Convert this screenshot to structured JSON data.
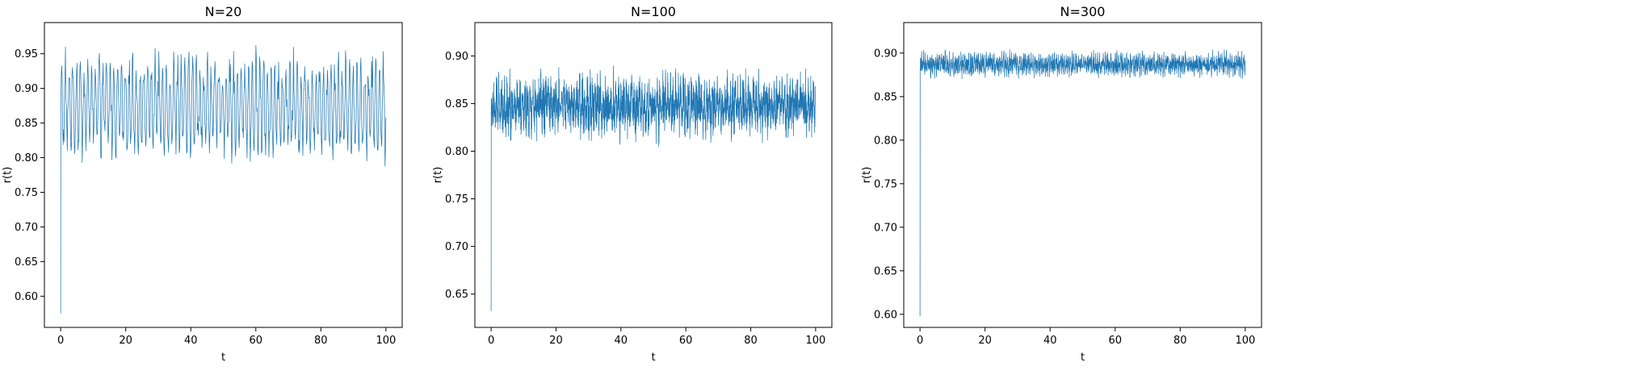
{
  "figure": {
    "line_color": "#1f77b4"
  },
  "chart_data": [
    {
      "type": "line",
      "title": "N=20",
      "xlabel": "t",
      "ylabel": "r(t)",
      "xlim": [
        -5,
        105
      ],
      "ylim": [
        0.555,
        0.995
      ],
      "xticks": [
        0,
        20,
        40,
        60,
        80,
        100
      ],
      "yticks": [
        0.6,
        0.65,
        0.7,
        0.75,
        0.8,
        0.85,
        0.9,
        0.95
      ],
      "series": [
        {
          "signal": {
            "start_value": 0.575,
            "initial_value": 0.86,
            "mean": 0.875,
            "amplitude": 0.055,
            "noise": 0.04,
            "min": 0.772,
            "max": 0.978,
            "period": 1.15,
            "samples": 700
          }
        }
      ]
    },
    {
      "type": "line",
      "title": "N=100",
      "xlabel": "t",
      "ylabel": "r(t)",
      "xlim": [
        -5,
        105
      ],
      "ylim": [
        0.615,
        0.935
      ],
      "xticks": [
        0,
        20,
        40,
        60,
        80,
        100
      ],
      "yticks": [
        0.65,
        0.7,
        0.75,
        0.8,
        0.85,
        0.9
      ],
      "series": [
        {
          "signal": {
            "start_value": 0.632,
            "initial_value": 0.855,
            "mean": 0.848,
            "amplitude": 0.012,
            "noise": 0.032,
            "min": 0.772,
            "max": 0.926,
            "period": 0.8,
            "samples": 2200
          }
        }
      ]
    },
    {
      "type": "line",
      "title": "N=300",
      "xlabel": "t",
      "ylabel": "r(t)",
      "xlim": [
        -5,
        105
      ],
      "ylim": [
        0.585,
        0.935
      ],
      "xticks": [
        0,
        20,
        40,
        60,
        80,
        100
      ],
      "yticks": [
        0.6,
        0.65,
        0.7,
        0.75,
        0.8,
        0.85,
        0.9
      ],
      "series": [
        {
          "signal": {
            "start_value": 0.598,
            "initial_value": 0.88,
            "mean": 0.887,
            "amplitude": 0.005,
            "noise": 0.013,
            "min": 0.855,
            "max": 0.92,
            "period": 0.6,
            "samples": 2200
          }
        }
      ]
    }
  ]
}
